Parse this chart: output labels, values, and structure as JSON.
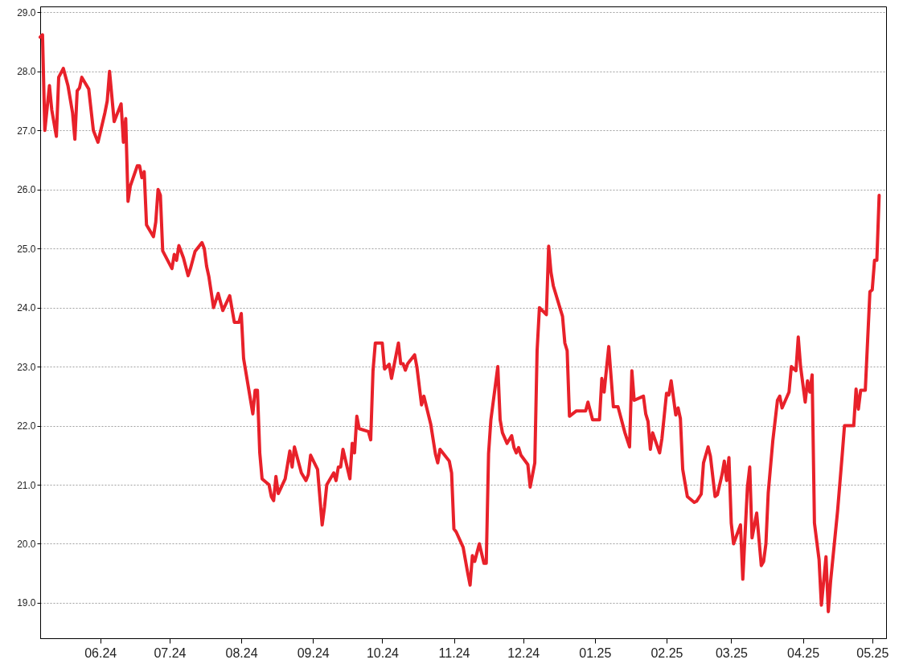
{
  "chart_data": {
    "type": "line",
    "grid": "y",
    "marker": "none",
    "line_style": "solid",
    "xlim": [
      "2024-05-06",
      "2025-05-07"
    ],
    "ylim": [
      18.4,
      29.1
    ],
    "xticks": [
      {
        "value": "2024-06-01",
        "label": "06.24"
      },
      {
        "value": "2024-07-01",
        "label": "07.24"
      },
      {
        "value": "2024-08-01",
        "label": "08.24"
      },
      {
        "value": "2024-09-01",
        "label": "09.24"
      },
      {
        "value": "2024-10-01",
        "label": "10.24"
      },
      {
        "value": "2024-11-01",
        "label": "11.24"
      },
      {
        "value": "2024-12-01",
        "label": "12.24"
      },
      {
        "value": "2025-01-01",
        "label": "01.25"
      },
      {
        "value": "2025-02-01",
        "label": "02.25"
      },
      {
        "value": "2025-03-01",
        "label": "03.25"
      },
      {
        "value": "2025-04-01",
        "label": "04.25"
      },
      {
        "value": "2025-05-01",
        "label": "05.25"
      }
    ],
    "yticks": [
      {
        "value": 19,
        "label": "19.0"
      },
      {
        "value": 20,
        "label": "20.0"
      },
      {
        "value": 21,
        "label": "21.0"
      },
      {
        "value": 22,
        "label": "22.0"
      },
      {
        "value": 23,
        "label": "23.0"
      },
      {
        "value": 24,
        "label": "24.0"
      },
      {
        "value": 25,
        "label": "25.0"
      },
      {
        "value": 26,
        "label": "26.0"
      },
      {
        "value": 27,
        "label": "27.0"
      },
      {
        "value": 28,
        "label": "28.0"
      },
      {
        "value": 29,
        "label": "29.0"
      }
    ],
    "x": [
      "2024-05-06",
      "2024-05-07",
      "2024-05-08",
      "2024-05-10",
      "2024-05-11",
      "2024-05-13",
      "2024-05-14",
      "2024-05-16",
      "2024-05-18",
      "2024-05-20",
      "2024-05-21",
      "2024-05-22",
      "2024-05-23",
      "2024-05-24",
      "2024-05-27",
      "2024-05-29",
      "2024-05-31",
      "2024-06-03",
      "2024-06-04",
      "2024-06-05",
      "2024-06-07",
      "2024-06-10",
      "2024-06-11",
      "2024-06-12",
      "2024-06-13",
      "2024-06-14",
      "2024-06-17",
      "2024-06-18",
      "2024-06-19",
      "2024-06-20",
      "2024-06-21",
      "2024-06-24",
      "2024-06-25",
      "2024-06-26",
      "2024-06-27",
      "2024-06-28",
      "2024-07-02",
      "2024-07-03",
      "2024-07-04",
      "2024-07-05",
      "2024-07-07",
      "2024-07-09",
      "2024-07-10",
      "2024-07-12",
      "2024-07-15",
      "2024-07-16",
      "2024-07-17",
      "2024-07-18",
      "2024-07-20",
      "2024-07-22",
      "2024-07-24",
      "2024-07-27",
      "2024-07-29",
      "2024-07-31",
      "2024-08-01",
      "2024-08-02",
      "2024-08-06",
      "2024-08-07",
      "2024-08-08",
      "2024-08-09",
      "2024-08-10",
      "2024-08-13",
      "2024-08-14",
      "2024-08-15",
      "2024-08-16",
      "2024-08-17",
      "2024-08-20",
      "2024-08-22",
      "2024-08-23",
      "2024-08-24",
      "2024-08-27",
      "2024-08-29",
      "2024-08-30",
      "2024-08-31",
      "2024-09-03",
      "2024-09-05",
      "2024-09-06",
      "2024-09-07",
      "2024-09-10",
      "2024-09-11",
      "2024-09-12",
      "2024-09-13",
      "2024-09-14",
      "2024-09-17",
      "2024-09-18",
      "2024-09-19",
      "2024-09-20",
      "2024-09-21",
      "2024-09-25",
      "2024-09-26",
      "2024-09-27",
      "2024-09-28",
      "2024-10-01",
      "2024-10-02",
      "2024-10-04",
      "2024-10-05",
      "2024-10-08",
      "2024-10-09",
      "2024-10-10",
      "2024-10-11",
      "2024-10-12",
      "2024-10-15",
      "2024-10-16",
      "2024-10-18",
      "2024-10-19",
      "2024-10-22",
      "2024-10-24",
      "2024-10-25",
      "2024-10-26",
      "2024-10-30",
      "2024-10-31",
      "2024-11-01",
      "2024-11-02",
      "2024-11-05",
      "2024-11-07",
      "2024-11-08",
      "2024-11-09",
      "2024-11-10",
      "2024-11-12",
      "2024-11-14",
      "2024-11-15",
      "2024-11-16",
      "2024-11-17",
      "2024-11-20",
      "2024-11-21",
      "2024-11-22",
      "2024-11-24",
      "2024-11-26",
      "2024-11-27",
      "2024-11-28",
      "2024-11-29",
      "2024-11-30",
      "2024-12-03",
      "2024-12-04",
      "2024-12-06",
      "2024-12-07",
      "2024-12-08",
      "2024-12-11",
      "2024-12-12",
      "2024-12-13",
      "2024-12-14",
      "2024-12-18",
      "2024-12-19",
      "2024-12-20",
      "2024-12-21",
      "2024-12-24",
      "2024-12-28",
      "2024-12-29",
      "2024-12-31",
      "2025-01-03",
      "2025-01-04",
      "2025-01-05",
      "2025-01-07",
      "2025-01-09",
      "2025-01-11",
      "2025-01-14",
      "2025-01-16",
      "2025-01-17",
      "2025-01-18",
      "2025-01-22",
      "2025-01-23",
      "2025-01-24",
      "2025-01-25",
      "2025-01-26",
      "2025-01-29",
      "2025-01-30",
      "2025-02-01",
      "2025-02-02",
      "2025-02-03",
      "2025-02-05",
      "2025-02-06",
      "2025-02-07",
      "2025-02-08",
      "2025-02-10",
      "2025-02-13",
      "2025-02-14",
      "2025-02-16",
      "2025-02-17",
      "2025-02-19",
      "2025-02-20",
      "2025-02-22",
      "2025-02-23",
      "2025-02-25",
      "2025-02-26",
      "2025-02-27",
      "2025-02-28",
      "2025-03-01",
      "2025-03-02",
      "2025-03-05",
      "2025-03-06",
      "2025-03-08",
      "2025-03-09",
      "2025-03-10",
      "2025-03-12",
      "2025-03-14",
      "2025-03-15",
      "2025-03-16",
      "2025-03-17",
      "2025-03-19",
      "2025-03-21",
      "2025-03-22",
      "2025-03-23",
      "2025-03-26",
      "2025-03-27",
      "2025-03-29",
      "2025-03-30",
      "2025-03-31",
      "2025-04-02",
      "2025-04-03",
      "2025-04-04",
      "2025-04-05",
      "2025-04-06",
      "2025-04-08",
      "2025-04-09",
      "2025-04-11",
      "2025-04-12",
      "2025-04-13",
      "2025-04-16",
      "2025-04-18",
      "2025-04-19",
      "2025-04-23",
      "2025-04-24",
      "2025-04-25",
      "2025-04-26",
      "2025-04-28",
      "2025-04-30",
      "2025-05-01",
      "2025-05-02",
      "2025-05-03",
      "2025-05-04"
    ],
    "series": [
      {
        "color": "#e8212a",
        "values": [
          28.58,
          28.62,
          27.0,
          27.76,
          27.35,
          26.9,
          27.9,
          28.05,
          27.76,
          27.3,
          26.85,
          27.67,
          27.72,
          27.9,
          27.7,
          27.0,
          26.8,
          27.3,
          27.5,
          28.0,
          27.15,
          27.45,
          26.8,
          27.2,
          25.8,
          26.06,
          26.4,
          26.4,
          26.2,
          26.3,
          25.4,
          25.2,
          25.45,
          26.0,
          25.9,
          24.96,
          24.66,
          24.9,
          24.8,
          25.05,
          24.84,
          24.54,
          24.66,
          24.95,
          25.1,
          25.0,
          24.7,
          24.52,
          24.0,
          24.24,
          23.95,
          24.2,
          23.75,
          23.75,
          23.9,
          23.14,
          22.2,
          22.6,
          22.6,
          21.54,
          21.1,
          21.0,
          20.8,
          20.73,
          21.14,
          20.85,
          21.1,
          21.57,
          21.3,
          21.64,
          21.2,
          21.07,
          21.17,
          21.5,
          21.26,
          20.32,
          20.62,
          21.0,
          21.2,
          21.07,
          21.3,
          21.3,
          21.6,
          21.1,
          21.7,
          21.54,
          22.16,
          21.95,
          21.9,
          21.76,
          22.93,
          23.4,
          23.4,
          22.96,
          23.04,
          22.8,
          23.4,
          23.05,
          23.05,
          22.94,
          23.05,
          23.2,
          22.99,
          22.35,
          22.5,
          22.02,
          21.52,
          21.37,
          21.6,
          21.4,
          21.2,
          20.25,
          20.2,
          19.94,
          19.5,
          19.3,
          19.8,
          19.7,
          20.0,
          19.67,
          19.67,
          21.53,
          22.1,
          23.0,
          22.1,
          21.88,
          21.7,
          21.83,
          21.63,
          21.54,
          21.63,
          21.5,
          21.34,
          20.96,
          21.37,
          23.27,
          24.0,
          23.88,
          25.04,
          24.6,
          24.37,
          23.85,
          23.4,
          23.27,
          22.16,
          22.25,
          22.25,
          22.4,
          22.1,
          22.1,
          22.8,
          22.57,
          23.34,
          22.32,
          22.32,
          21.88,
          21.64,
          22.93,
          22.43,
          22.5,
          22.2,
          22.07,
          21.6,
          21.88,
          21.54,
          21.78,
          22.55,
          22.52,
          22.76,
          22.18,
          22.3,
          22.12,
          21.26,
          20.8,
          20.7,
          20.72,
          20.84,
          21.37,
          21.64,
          21.48,
          20.8,
          20.83,
          21.17,
          21.4,
          21.07,
          21.46,
          20.35,
          20.0,
          20.32,
          19.4,
          20.96,
          21.3,
          20.1,
          20.52,
          19.63,
          19.7,
          20.0,
          20.86,
          21.75,
          22.43,
          22.5,
          22.3,
          22.57,
          23.0,
          22.93,
          23.5,
          23.0,
          22.4,
          22.76,
          22.57,
          22.86,
          20.35,
          19.73,
          18.96,
          19.78,
          18.85,
          19.37,
          20.55,
          21.5,
          22.0,
          22.0,
          22.62,
          22.28,
          22.6,
          22.6,
          24.27,
          24.3,
          24.8,
          24.8,
          25.9
        ]
      }
    ]
  }
}
